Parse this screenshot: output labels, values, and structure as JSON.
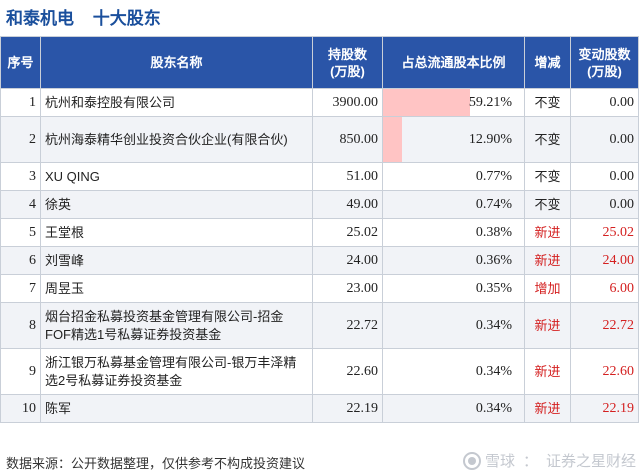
{
  "title": {
    "company": "和泰机电",
    "subtitle": "十大股东"
  },
  "table": {
    "headers": {
      "index": "序号",
      "name": "股东名称",
      "shares_line1": "持股数",
      "shares_line2": "(万股)",
      "ratio": "占总流通股本比例",
      "change": "增减",
      "delta_line1": "变动股数",
      "delta_line2": "(万股)"
    },
    "rows": [
      {
        "index": "1",
        "name": "杭州和泰控股有限公司",
        "shares": "3900.00",
        "ratio": "59.21%",
        "ratio_value": 59.21,
        "change": "不变",
        "delta": "0.00"
      },
      {
        "index": "2",
        "name": "杭州海泰精华创业投资合伙企业(有限合伙)",
        "shares": "850.00",
        "ratio": "12.90%",
        "ratio_value": 12.9,
        "change": "不变",
        "delta": "0.00"
      },
      {
        "index": "3",
        "name": "XU QING",
        "shares": "51.00",
        "ratio": "0.77%",
        "ratio_value": 0.77,
        "change": "不变",
        "delta": "0.00"
      },
      {
        "index": "4",
        "name": "徐英",
        "shares": "49.00",
        "ratio": "0.74%",
        "ratio_value": 0.74,
        "change": "不变",
        "delta": "0.00"
      },
      {
        "index": "5",
        "name": "王堂根",
        "shares": "25.02",
        "ratio": "0.38%",
        "ratio_value": 0.38,
        "change": "新进",
        "delta": "25.02"
      },
      {
        "index": "6",
        "name": "刘雪峰",
        "shares": "24.00",
        "ratio": "0.36%",
        "ratio_value": 0.36,
        "change": "新进",
        "delta": "24.00"
      },
      {
        "index": "7",
        "name": "周昱玉",
        "shares": "23.00",
        "ratio": "0.35%",
        "ratio_value": 0.35,
        "change": "增加",
        "delta": "6.00"
      },
      {
        "index": "8",
        "name": "烟台招金私募投资基金管理有限公司-招金FOF精选1号私募证券投资基金",
        "shares": "22.72",
        "ratio": "0.34%",
        "ratio_value": 0.34,
        "change": "新进",
        "delta": "22.72"
      },
      {
        "index": "9",
        "name": "浙江银万私募基金管理有限公司-银万丰泽精选2号私募证券投资基金",
        "shares": "22.60",
        "ratio": "0.34%",
        "ratio_value": 0.34,
        "change": "新进",
        "delta": "22.60"
      },
      {
        "index": "10",
        "name": "陈军",
        "shares": "22.19",
        "ratio": "0.34%",
        "ratio_value": 0.34,
        "change": "新进",
        "delta": "22.19"
      }
    ]
  },
  "footer": {
    "source": "数据来源：公开数据整理，仅供参考不构成投资建议",
    "brand_platform": "雪球",
    "brand_sep": "：",
    "brand_name": "证券之星财经"
  },
  "watermark": {
    "text": "证券之星"
  },
  "colors": {
    "header_bg": "#2a55a8",
    "title": "#1a4f9c",
    "ratio_bar": "#ffc4c4",
    "increase": "#d42020"
  },
  "icons": {
    "brand": "snowball-logo-icon"
  }
}
